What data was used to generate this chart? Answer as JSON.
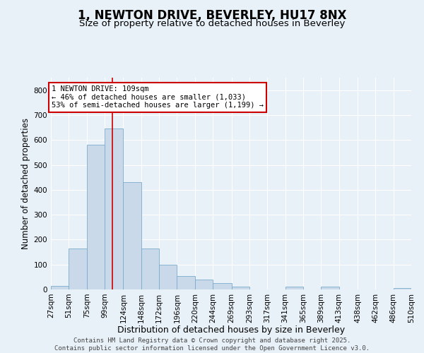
{
  "title1": "1, NEWTON DRIVE, BEVERLEY, HU17 8NX",
  "title2": "Size of property relative to detached houses in Beverley",
  "xlabel": "Distribution of detached houses by size in Beverley",
  "ylabel": "Number of detached properties",
  "bin_edges": [
    27,
    51,
    75,
    99,
    124,
    148,
    172,
    196,
    220,
    244,
    269,
    293,
    317,
    341,
    365,
    389,
    413,
    438,
    462,
    486,
    510
  ],
  "bar_heights": [
    15,
    165,
    580,
    645,
    430,
    165,
    100,
    55,
    40,
    25,
    10,
    0,
    0,
    10,
    0,
    10,
    0,
    0,
    0,
    5
  ],
  "bar_color": "#c9d9ea",
  "bar_edge_color": "#7aaccc",
  "vline_x": 109,
  "vline_color": "#cc0000",
  "annotation_text": "1 NEWTON DRIVE: 109sqm\n← 46% of detached houses are smaller (1,033)\n53% of semi-detached houses are larger (1,199) →",
  "annotation_box_color": "#ffffff",
  "annotation_box_edge": "#cc0000",
  "ylim": [
    0,
    850
  ],
  "yticks": [
    0,
    100,
    200,
    300,
    400,
    500,
    600,
    700,
    800
  ],
  "background_color": "#e8f0f8",
  "footer_text": "Contains HM Land Registry data © Crown copyright and database right 2025.\nContains public sector information licensed under the Open Government Licence v3.0.",
  "title1_fontsize": 12,
  "title2_fontsize": 9.5,
  "xlabel_fontsize": 9,
  "ylabel_fontsize": 8.5,
  "tick_fontsize": 7.5,
  "annotation_fontsize": 7.5,
  "footer_fontsize": 6.5
}
